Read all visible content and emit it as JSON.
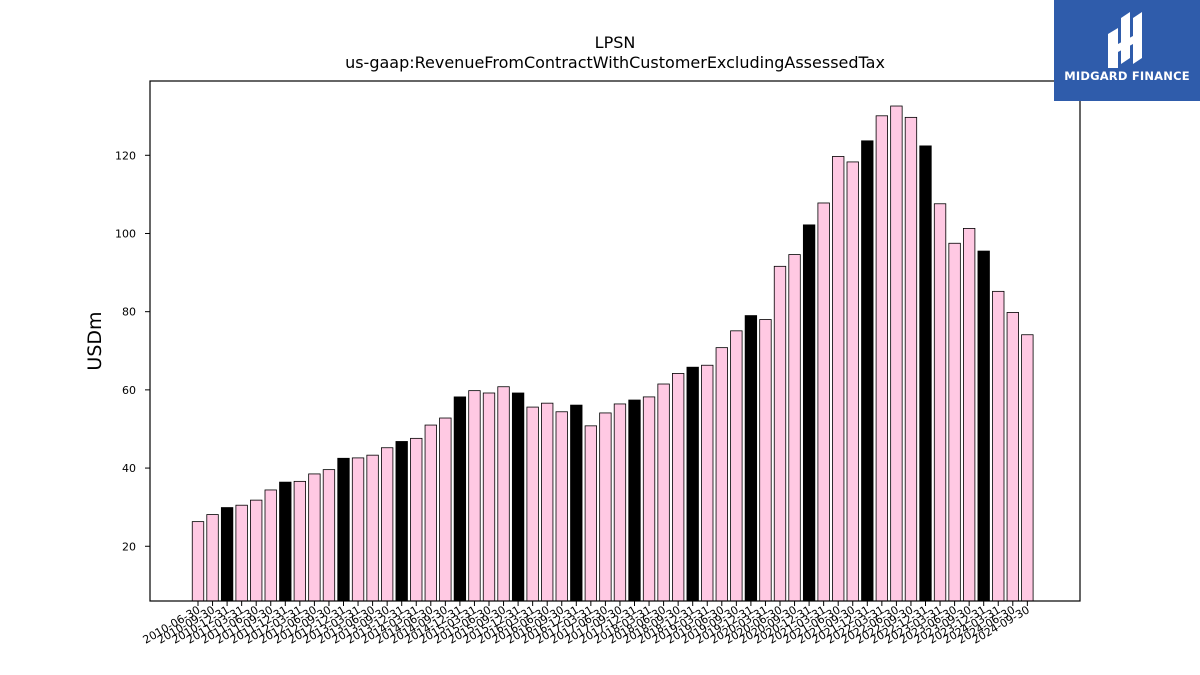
{
  "chart_data": {
    "type": "bar",
    "title": "LPSN",
    "subtitle": "us-gaap:RevenueFromContractWithCustomerExcludingAssessedTax",
    "xlabel": "",
    "ylabel": "USDm",
    "ylim": [
      6,
      139
    ],
    "yticks": [
      20,
      40,
      60,
      80,
      100,
      120
    ],
    "grid": false,
    "colors": {
      "quarter": "#ffc9e3",
      "fiscal_year_end": "#000000",
      "edge": "#000000"
    },
    "categories": [
      "2010-06-30",
      "2010-09-30",
      "2010-12-31",
      "2011-03-31",
      "2011-06-30",
      "2011-09-30",
      "2011-12-31",
      "2012-03-31",
      "2012-06-30",
      "2012-09-30",
      "2012-12-31",
      "2013-03-31",
      "2013-06-30",
      "2013-09-30",
      "2013-12-31",
      "2014-03-31",
      "2014-06-30",
      "2014-09-30",
      "2014-12-31",
      "2015-03-31",
      "2015-06-30",
      "2015-09-30",
      "2015-12-31",
      "2016-03-31",
      "2016-06-30",
      "2016-09-30",
      "2016-12-31",
      "2017-03-31",
      "2017-06-30",
      "2017-09-30",
      "2017-12-31",
      "2018-03-31",
      "2018-06-30",
      "2018-09-30",
      "2018-12-31",
      "2019-03-31",
      "2019-06-30",
      "2019-09-30",
      "2019-12-31",
      "2020-03-31",
      "2020-06-30",
      "2020-09-30",
      "2020-12-31",
      "2021-03-31",
      "2021-06-30",
      "2021-09-30",
      "2021-12-31",
      "2022-03-31",
      "2022-06-30",
      "2022-09-30",
      "2022-12-31",
      "2023-03-31",
      "2023-06-30",
      "2023-09-30",
      "2023-12-31",
      "2024-03-31",
      "2024-06-30",
      "2024-09-30"
    ],
    "values": [
      26.3,
      28.1,
      29.9,
      30.5,
      31.8,
      34.4,
      36.4,
      36.6,
      38.5,
      39.6,
      42.5,
      42.6,
      43.3,
      45.2,
      46.8,
      47.6,
      51.0,
      52.8,
      58.2,
      59.8,
      59.2,
      60.8,
      59.2,
      55.6,
      56.6,
      54.4,
      56.1,
      50.8,
      54.1,
      56.4,
      57.4,
      58.2,
      61.5,
      64.2,
      65.8,
      66.3,
      70.8,
      75.1,
      79.0,
      78.0,
      91.6,
      94.6,
      102.2,
      107.8,
      119.7,
      118.3,
      123.7,
      130.1,
      132.6,
      129.7,
      122.4,
      107.6,
      97.5,
      101.3,
      95.5,
      85.2,
      79.8,
      74.1
    ],
    "highlight": [
      false,
      false,
      true,
      false,
      false,
      false,
      true,
      false,
      false,
      false,
      true,
      false,
      false,
      false,
      true,
      false,
      false,
      false,
      true,
      false,
      false,
      false,
      true,
      false,
      false,
      false,
      true,
      false,
      false,
      false,
      true,
      false,
      false,
      false,
      true,
      false,
      false,
      false,
      true,
      false,
      false,
      false,
      true,
      false,
      false,
      false,
      true,
      false,
      false,
      false,
      true,
      false,
      false,
      false,
      true,
      false,
      false,
      false
    ]
  },
  "logo": {
    "text": "MIDGARD FINANCE"
  }
}
